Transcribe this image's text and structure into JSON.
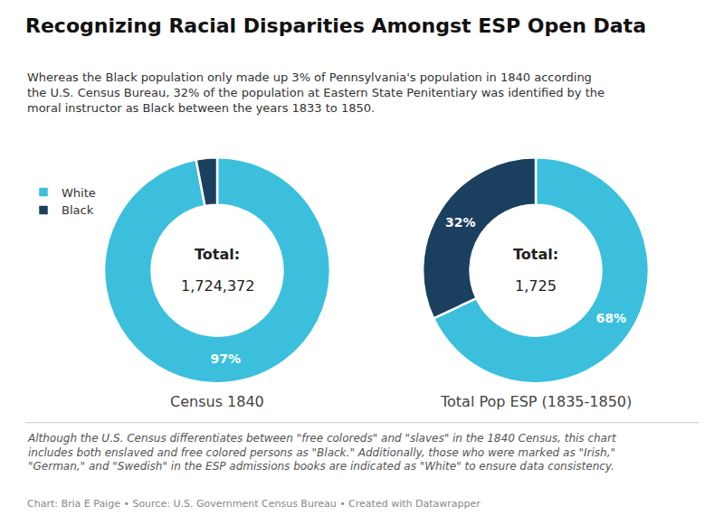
{
  "title": "Recognizing Racial Disparities Amongst ESP Open Data",
  "subtitle": "Whereas the Black population only made up 3% of Pennsylvania's population in 1840 according\nthe U.S. Census Bureau, 32% of the population at Eastern State Penitentiary was identified by the\nmoral instructor as Black between the years 1833 to 1850.",
  "footnote": [
    "Although the U.S. Census differentiates between \"free coloreds\" and \"slaves\" in the 1840 Census, this chart",
    "includes both enslaved and free colored persons as \"Black.\" Additionally, those who were marked as \"Irish,\"",
    "\"German,\" and \"Swedish\" in the ESP admissions books are indicated as \"White\" to ensure data consistency."
  ],
  "source": "Chart: Bria E Paige • Source: U.S. Government Census Bureau • Created with Datawrapper",
  "chart_data": [
    {
      "type": "pie",
      "title": "Census 1840",
      "categories": [
        "White",
        "Black"
      ],
      "values": [
        97,
        3
      ],
      "colors": [
        "#3bbfdd",
        "#1b3f5e"
      ],
      "data_labels": true,
      "value_labels": [
        "97%",
        null
      ],
      "annotations": [
        "Total:",
        "1,724,372"
      ],
      "legend": "upper left"
    },
    {
      "type": "pie",
      "title": "Total Pop ESP (1835-1850)",
      "categories": [
        "White",
        "Black"
      ],
      "values": [
        68,
        32
      ],
      "colors": [
        "#3bbfdd",
        "#1b3f5e"
      ],
      "data_labels": true,
      "value_labels": [
        "68%",
        "32%"
      ],
      "annotations": [
        "Total:",
        "1,725"
      ],
      "legend": "upper left"
    }
  ]
}
